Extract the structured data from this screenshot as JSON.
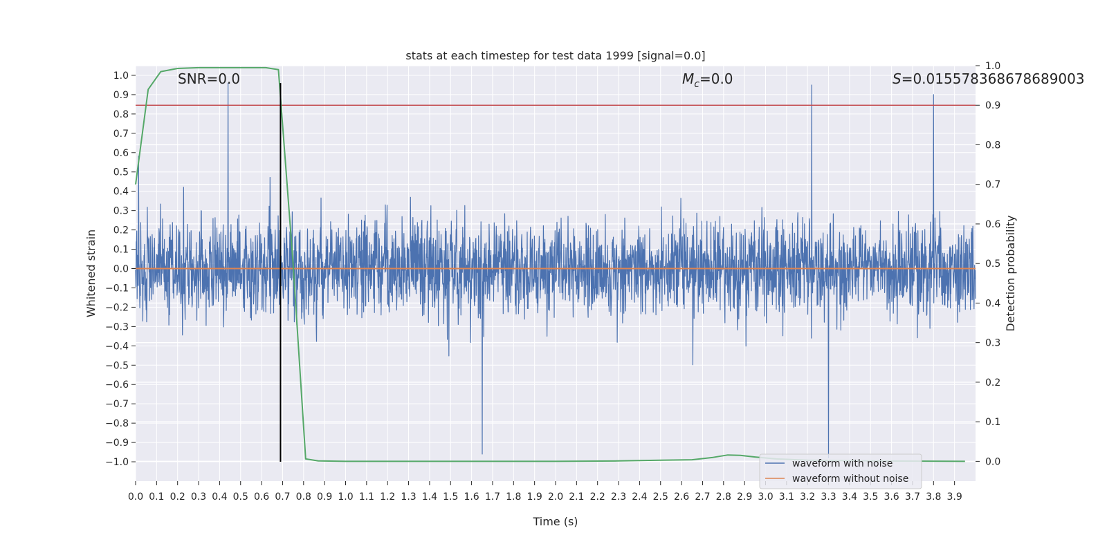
{
  "chart_data": {
    "type": "line",
    "title": "stats at each timestep for test data 1999 [signal=0.0]",
    "xlabel": "Time (s)",
    "ylabel_left": "Whitened strain",
    "ylabel_right": "Detection probability",
    "xlim": [
      0.0,
      4.0
    ],
    "ylim_left": [
      -1.1,
      1.05
    ],
    "ylim_right": [
      -0.05,
      1.0
    ],
    "x_ticks": [
      "0.0",
      "0.1",
      "0.2",
      "0.3",
      "0.4",
      "0.5",
      "0.6",
      "0.7",
      "0.8",
      "0.9",
      "1.0",
      "1.1",
      "1.2",
      "1.3",
      "1.4",
      "1.5",
      "1.6",
      "1.7",
      "1.8",
      "1.9",
      "2.0",
      "2.1",
      "2.2",
      "2.3",
      "2.4",
      "2.5",
      "2.6",
      "2.7",
      "2.8",
      "2.9",
      "3.0",
      "3.1",
      "3.2",
      "3.3",
      "3.4",
      "3.5",
      "3.6",
      "3.7",
      "3.8",
      "3.9"
    ],
    "y_ticks_left": [
      "1.0",
      "0.9",
      "0.8",
      "0.7",
      "0.6",
      "0.5",
      "0.4",
      "0.3",
      "0.2",
      "0.1",
      "0.0",
      "−0.1",
      "−0.2",
      "−0.3",
      "−0.4",
      "−0.5",
      "−0.6",
      "−0.7",
      "−0.8",
      "−0.9",
      "−1.0"
    ],
    "y_tick_values_left": [
      1.0,
      0.9,
      0.8,
      0.7,
      0.6,
      0.5,
      0.4,
      0.3,
      0.2,
      0.1,
      0.0,
      -0.1,
      -0.2,
      -0.3,
      -0.4,
      -0.5,
      -0.6,
      -0.7,
      -0.8,
      -0.9,
      -1.0
    ],
    "y_ticks_right": [
      "1.0",
      "0.9",
      "0.8",
      "0.7",
      "0.6",
      "0.5",
      "0.4",
      "0.3",
      "0.2",
      "0.1",
      "0.0"
    ],
    "y_tick_values_right": [
      1.0,
      0.9,
      0.8,
      0.7,
      0.6,
      0.5,
      0.4,
      0.3,
      0.2,
      0.1,
      0.0
    ],
    "series": [
      {
        "name": "waveform with noise",
        "color": "#4c72b0",
        "amplitude_range": [
          -0.98,
          0.96
        ],
        "spikes": [
          [
            0.44,
            0.96
          ],
          [
            3.3,
            -0.98
          ],
          [
            3.22,
            0.95
          ],
          [
            1.65,
            -0.96
          ],
          [
            3.8,
            0.9
          ]
        ]
      },
      {
        "name": "waveform without noise",
        "color": "#dd8452",
        "constant": 0.0
      },
      {
        "name": "detection probability",
        "color": "#55a868",
        "axis": "right",
        "x": [
          0.0,
          0.06,
          0.12,
          0.2,
          0.3,
          0.45,
          0.62,
          0.68,
          0.75,
          0.81,
          0.87,
          1.0,
          1.5,
          2.0,
          2.3,
          2.5,
          2.65,
          2.75,
          2.82,
          2.88,
          2.95,
          3.05,
          3.2,
          3.5,
          3.95
        ],
        "y": [
          0.7,
          0.94,
          0.985,
          0.993,
          0.995,
          0.995,
          0.995,
          0.99,
          0.5,
          0.006,
          0.001,
          0.0,
          0.0,
          0.0,
          0.001,
          0.003,
          0.004,
          0.01,
          0.016,
          0.015,
          0.011,
          0.006,
          0.003,
          0.001,
          0.0
        ]
      }
    ],
    "threshold": {
      "axis": "right",
      "value": 0.9,
      "color": "#c44e52"
    },
    "vline": {
      "x": 0.69,
      "y_range": [
        -1.0,
        0.96
      ],
      "color": "#000000"
    },
    "annotations": {
      "snr": "SNR=0.0",
      "mc_symbol": "M",
      "mc_sub": "c",
      "mc_value": "=0.0",
      "s_symbol": "S",
      "s_value": "=0.015578368678689003"
    },
    "legend": {
      "position": "bottom-right",
      "entries": [
        {
          "label": "waveform with noise",
          "color": "#4c72b0"
        },
        {
          "label": "waveform without noise",
          "color": "#dd8452"
        }
      ]
    },
    "grid": true,
    "colors": {
      "plot_bg": "#eaeaf2",
      "grid": "#ffffff",
      "text": "#262626"
    }
  }
}
